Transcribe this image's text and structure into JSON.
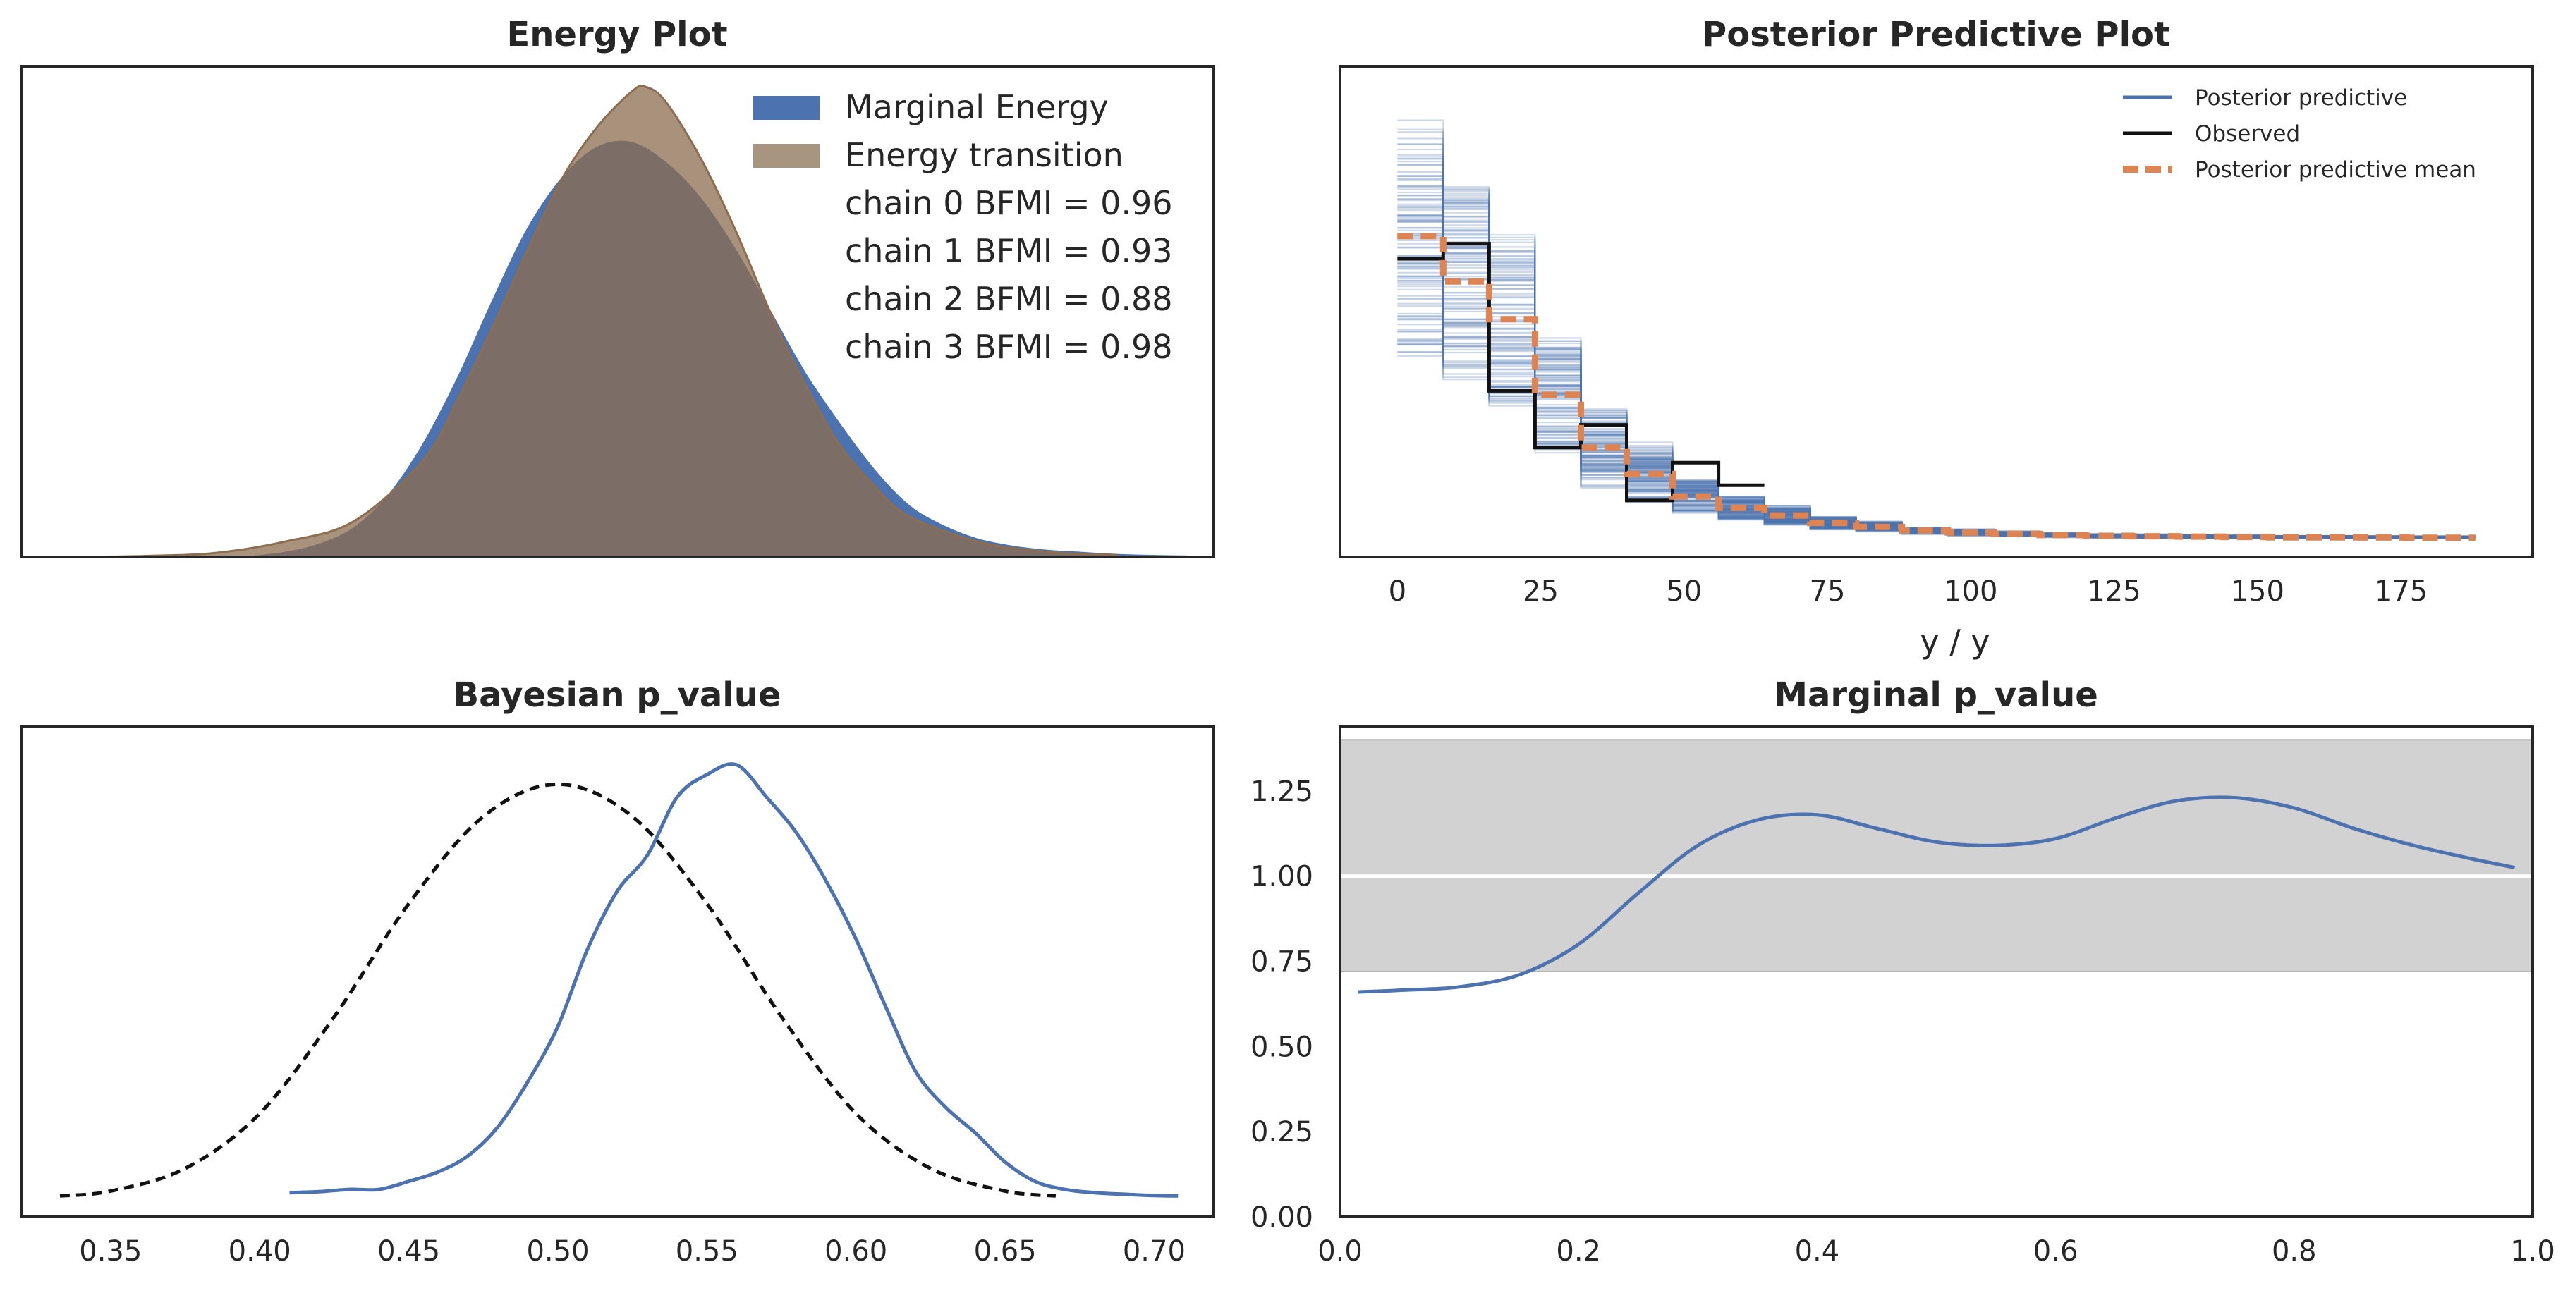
{
  "colors": {
    "blue": "#4c72b0",
    "brown": "#8c6d4f",
    "orange": "#dd8452",
    "black": "#111111",
    "band": "#d2d2d2",
    "frame": "#262626"
  },
  "chart_data": [
    {
      "type": "area",
      "title": "Energy Plot",
      "xlabel": "",
      "ylabel": "",
      "xlim": [
        -4.4,
        4.2
      ],
      "ylim": [
        0,
        0.48
      ],
      "grid": false,
      "legend_position": "top-right",
      "legend": [
        "Marginal Energy",
        "Energy transition"
      ],
      "bfmi_labels": [
        "chain  0 BFMI = 0.96",
        "chain  1 BFMI = 0.93",
        "chain  2 BFMI = 0.88",
        "chain  3 BFMI = 0.98"
      ],
      "series": [
        {
          "name": "Marginal Energy",
          "x": [
            -2.75,
            -2.5,
            -2.25,
            -2.0,
            -1.75,
            -1.5,
            -1.25,
            -1.0,
            -0.75,
            -0.5,
            -0.25,
            0.0,
            0.25,
            0.5,
            0.75,
            1.0,
            1.25,
            1.5,
            1.75,
            2.0,
            2.25,
            2.5,
            2.75,
            3.0,
            3.25,
            3.5,
            3.75,
            4.0
          ],
          "y": [
            0.0,
            0.004,
            0.012,
            0.028,
            0.06,
            0.11,
            0.175,
            0.25,
            0.32,
            0.37,
            0.4,
            0.405,
            0.385,
            0.35,
            0.3,
            0.24,
            0.18,
            0.13,
            0.085,
            0.05,
            0.03,
            0.017,
            0.01,
            0.006,
            0.004,
            0.002,
            0.001,
            0.0005
          ]
        },
        {
          "name": "Energy transition",
          "x": [
            -4.0,
            -3.5,
            -3.0,
            -2.5,
            -2.0,
            -1.5,
            -1.25,
            -1.0,
            -0.75,
            -0.5,
            -0.25,
            0.0,
            0.1,
            0.25,
            0.5,
            0.75,
            1.0,
            1.25,
            1.5,
            1.75,
            2.0,
            2.5,
            3.0,
            3.5
          ],
          "y": [
            0.0,
            0.001,
            0.004,
            0.015,
            0.035,
            0.095,
            0.155,
            0.225,
            0.3,
            0.37,
            0.42,
            0.455,
            0.46,
            0.445,
            0.39,
            0.32,
            0.24,
            0.17,
            0.11,
            0.07,
            0.04,
            0.015,
            0.005,
            0.002
          ]
        }
      ]
    },
    {
      "type": "line",
      "title": "Posterior Predictive Plot",
      "xlabel": "y / y",
      "ylabel": "",
      "xlim": [
        -10,
        198
      ],
      "ylim": [
        -0.005,
        0.125
      ],
      "xticks": [
        0,
        25,
        50,
        75,
        100,
        125,
        150,
        175
      ],
      "grid": false,
      "legend_position": "top-right",
      "legend": [
        "Posterior predictive",
        "Observed",
        "Posterior predictive mean"
      ],
      "bin_edges": [
        0,
        8,
        16,
        24,
        32,
        40,
        48,
        56,
        64,
        72,
        80,
        88,
        96,
        104,
        112,
        120,
        128,
        136,
        144,
        152,
        160,
        168,
        176,
        184,
        188
      ],
      "series": [
        {
          "name": "Observed",
          "x": [
            0,
            8,
            16,
            24,
            32,
            40,
            48,
            56,
            64
          ],
          "y": [
            0.074,
            0.078,
            0.039,
            0.024,
            0.03,
            0.01,
            0.02,
            0.014,
            0.014
          ]
        },
        {
          "name": "Posterior predictive mean",
          "x": [
            0,
            8,
            16,
            24,
            32,
            40,
            48,
            56,
            64,
            72,
            80,
            88,
            96,
            104,
            112,
            120,
            128,
            136,
            144,
            152,
            160,
            168,
            176,
            184,
            188
          ],
          "y": [
            0.08,
            0.068,
            0.058,
            0.038,
            0.024,
            0.017,
            0.011,
            0.008,
            0.006,
            0.004,
            0.003,
            0.002,
            0.0015,
            0.0011,
            0.0008,
            0.0006,
            0.0005,
            0.0004,
            0.0003,
            0.0002,
            0.0002,
            0.00015,
            0.0001,
            0.0001,
            0.0001
          ]
        }
      ]
    },
    {
      "type": "line",
      "title": "Bayesian p_value",
      "xlabel": "",
      "ylabel": "",
      "xlim": [
        0.32,
        0.72
      ],
      "ylim": [
        -0.6,
        14.6
      ],
      "xticks": [
        0.35,
        0.4,
        0.45,
        0.5,
        0.55,
        0.6,
        0.65,
        0.7
      ],
      "xtick_labels": [
        "0.35",
        "0.40",
        "0.45",
        "0.50",
        "0.55",
        "0.60",
        "0.65",
        "0.70"
      ],
      "grid": false,
      "series": [
        {
          "name": "",
          "x": [
            0.41,
            0.42,
            0.43,
            0.44,
            0.45,
            0.46,
            0.47,
            0.48,
            0.49,
            0.5,
            0.51,
            0.52,
            0.53,
            0.54,
            0.55,
            0.56,
            0.57,
            0.58,
            0.59,
            0.6,
            0.61,
            0.62,
            0.63,
            0.64,
            0.65,
            0.66,
            0.67,
            0.68,
            0.69,
            0.7,
            0.708
          ],
          "y": [
            0.15,
            0.18,
            0.25,
            0.25,
            0.5,
            0.8,
            1.3,
            2.2,
            3.6,
            5.3,
            7.7,
            9.5,
            10.6,
            12.4,
            13.1,
            13.4,
            12.4,
            11.3,
            9.8,
            8.0,
            5.9,
            3.9,
            2.8,
            2.0,
            1.1,
            0.5,
            0.25,
            0.15,
            0.1,
            0.06,
            0.05
          ]
        },
        {
          "name": "",
          "x": [
            0.333,
            0.35,
            0.375,
            0.4,
            0.425,
            0.45,
            0.475,
            0.5,
            0.525,
            0.55,
            0.575,
            0.6,
            0.625,
            0.65,
            0.667
          ],
          "y": [
            0.05,
            0.2,
            0.9,
            2.6,
            5.6,
            9.1,
            11.8,
            12.8,
            11.8,
            9.1,
            5.6,
            2.6,
            0.9,
            0.2,
            0.05
          ]
        }
      ]
    },
    {
      "type": "line",
      "title": "Marginal p_value",
      "xlabel": "",
      "ylabel": "",
      "xlim": [
        0.0,
        1.0
      ],
      "ylim": [
        0.0,
        1.44
      ],
      "xticks": [
        0.0,
        0.2,
        0.4,
        0.6,
        0.8,
        1.0
      ],
      "xtick_labels": [
        "0.0",
        "0.2",
        "0.4",
        "0.6",
        "0.8",
        "1.0"
      ],
      "yticks": [
        0.0,
        0.25,
        0.5,
        0.75,
        1.0,
        1.25
      ],
      "ytick_labels": [
        "0.00",
        "0.25",
        "0.50",
        "0.75",
        "1.00",
        "1.25"
      ],
      "band": [
        0.72,
        1.4
      ],
      "reference": 1.0,
      "grid": false,
      "series": [
        {
          "name": "",
          "x": [
            0.015,
            0.05,
            0.1,
            0.15,
            0.2,
            0.25,
            0.3,
            0.35,
            0.4,
            0.45,
            0.5,
            0.55,
            0.6,
            0.65,
            0.7,
            0.75,
            0.8,
            0.85,
            0.9,
            0.95,
            0.985
          ],
          "y": [
            0.66,
            0.665,
            0.675,
            0.71,
            0.8,
            0.95,
            1.09,
            1.165,
            1.18,
            1.14,
            1.1,
            1.09,
            1.11,
            1.17,
            1.22,
            1.23,
            1.2,
            1.14,
            1.09,
            1.05,
            1.025
          ]
        }
      ]
    }
  ]
}
